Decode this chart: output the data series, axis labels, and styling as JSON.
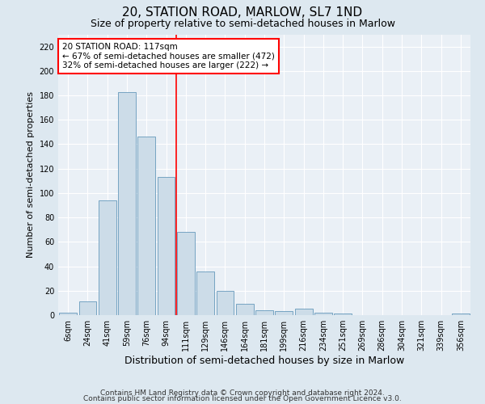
{
  "title1": "20, STATION ROAD, MARLOW, SL7 1ND",
  "title2": "Size of property relative to semi-detached houses in Marlow",
  "xlabel": "Distribution of semi-detached houses by size in Marlow",
  "ylabel": "Number of semi-detached properties",
  "footnote1": "Contains HM Land Registry data © Crown copyright and database right 2024.",
  "footnote2": "Contains public sector information licensed under the Open Government Licence v3.0.",
  "categories": [
    "6sqm",
    "24sqm",
    "41sqm",
    "59sqm",
    "76sqm",
    "94sqm",
    "111sqm",
    "129sqm",
    "146sqm",
    "164sqm",
    "181sqm",
    "199sqm",
    "216sqm",
    "234sqm",
    "251sqm",
    "269sqm",
    "286sqm",
    "304sqm",
    "321sqm",
    "339sqm",
    "356sqm"
  ],
  "values": [
    2,
    11,
    94,
    183,
    146,
    113,
    68,
    36,
    20,
    9,
    4,
    3,
    5,
    2,
    1,
    0,
    0,
    0,
    0,
    0,
    1
  ],
  "bar_color": "#ccdce8",
  "bar_edge_color": "#6699bb",
  "vline_color": "red",
  "vline_x": 6.0,
  "annotation_line1": "20 STATION ROAD: 117sqm",
  "annotation_line2": "← 67% of semi-detached houses are smaller (472)",
  "annotation_line3": "32% of semi-detached houses are larger (222) →",
  "annotation_box_color": "white",
  "annotation_box_edge": "red",
  "ylim": [
    0,
    230
  ],
  "yticks": [
    0,
    20,
    40,
    60,
    80,
    100,
    120,
    140,
    160,
    180,
    200,
    220
  ],
  "bg_color": "#dde8f0",
  "plot_bg_color": "#eaf0f6",
  "grid_color": "white",
  "title_fontsize": 11,
  "subtitle_fontsize": 9,
  "ylabel_fontsize": 8,
  "xlabel_fontsize": 9,
  "tick_fontsize": 7,
  "annot_fontsize": 7.5,
  "footnote_fontsize": 6.5
}
